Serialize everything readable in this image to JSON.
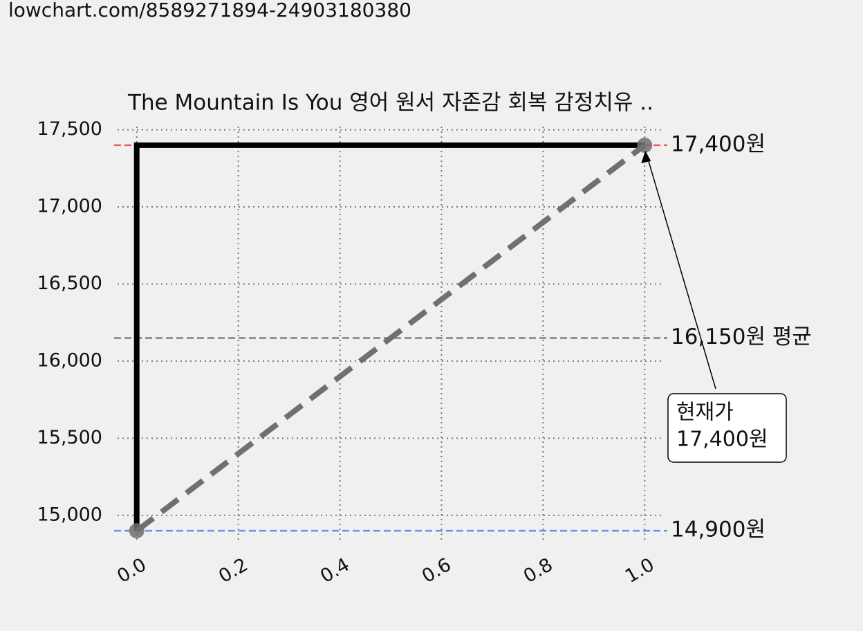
{
  "header": {
    "url": "lowchart.com/8589271894-24903180380"
  },
  "chart_data": {
    "type": "line",
    "title": "The Mountain Is You 영어 원서 자존감 회복 감정치유 ..",
    "series": [
      {
        "x": [
          0,
          0,
          1
        ],
        "values": [
          14900,
          17400,
          17400
        ],
        "color": "#000000",
        "style": "solid"
      },
      {
        "x": [
          0,
          1
        ],
        "values": [
          14900,
          17400
        ],
        "color": "#707070",
        "style": "dashed",
        "markers": true
      }
    ],
    "hlines": [
      {
        "value": 17400,
        "label": "17,400원",
        "color": "#f05a5a"
      },
      {
        "value": 16150,
        "label": "16,150원 평균",
        "color": "#808080"
      },
      {
        "value": 14900,
        "label": "14,900원",
        "color": "#6b8ff0"
      }
    ],
    "annotation": {
      "lines": [
        "현재가",
        "17,400원"
      ],
      "x": 1,
      "y": 17400
    },
    "xlim": [
      -0.05,
      1.05
    ],
    "ylim": [
      14775,
      17525
    ],
    "xticks": [
      {
        "value": 0,
        "label": "0.0"
      },
      {
        "value": 0.2,
        "label": "0.2"
      },
      {
        "value": 0.4,
        "label": "0.4"
      },
      {
        "value": 0.6,
        "label": "0.6"
      },
      {
        "value": 0.8,
        "label": "0.8"
      },
      {
        "value": 1,
        "label": "1.0"
      }
    ],
    "yticks": [
      {
        "value": 15000,
        "label": "15,000"
      },
      {
        "value": 15500,
        "label": "15,500"
      },
      {
        "value": 16000,
        "label": "16,000"
      },
      {
        "value": 16500,
        "label": "16,500"
      },
      {
        "value": 17000,
        "label": "17,000"
      },
      {
        "value": 17500,
        "label": "17,500"
      }
    ],
    "grid": true
  }
}
